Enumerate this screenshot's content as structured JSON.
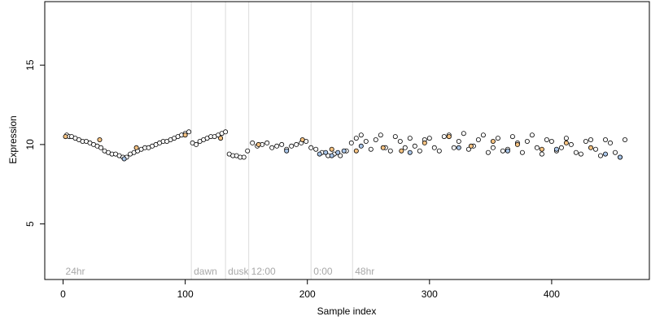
{
  "chart_data": {
    "type": "scatter",
    "xlabel": "Sample index",
    "ylabel": "Expression",
    "xlim": [
      -15,
      480
    ],
    "ylim": [
      1.5,
      19
    ],
    "x_ticks": [
      0,
      100,
      200,
      300,
      400
    ],
    "y_ticks": [
      5,
      10,
      15
    ],
    "grid": false,
    "colors": {
      "light": "#ffffff",
      "dark": "#f7c382",
      "dim": "#a9c5e8",
      "marker_edge": "#000000",
      "divider": "#dcdcdc",
      "divider_text": "#a8a8a8"
    },
    "segments": [
      {
        "label": "24hr",
        "x": 2
      },
      {
        "label": "dawn",
        "x": 105
      },
      {
        "label": "dusk",
        "x": 133
      },
      {
        "label": "12:00",
        "x": 152
      },
      {
        "label": "0:00",
        "x": 203
      },
      {
        "label": "48hr",
        "x": 237
      }
    ],
    "points": {
      "light": {
        "x": [
          3,
          5,
          7,
          10,
          13,
          16,
          19,
          22,
          25,
          28,
          31,
          34,
          37,
          40,
          43,
          46,
          49,
          52,
          55,
          58,
          61,
          64,
          67,
          70,
          73,
          76,
          79,
          82,
          85,
          88,
          91,
          94,
          97,
          100,
          103,
          106,
          109,
          112,
          115,
          118,
          121,
          124,
          127,
          130,
          133,
          136,
          139,
          142,
          145,
          148,
          151,
          155,
          159,
          163,
          167,
          171,
          175,
          179,
          183,
          187,
          191,
          195,
          199,
          203,
          207,
          212,
          217,
          222,
          227,
          232,
          236,
          240,
          244,
          248,
          252,
          256,
          260,
          264,
          268,
          272,
          276,
          280,
          284,
          288,
          292,
          296,
          300,
          304,
          308,
          312,
          316,
          320,
          324,
          328,
          332,
          336,
          340,
          344,
          348,
          352,
          356,
          360,
          364,
          368,
          372,
          376,
          380,
          384,
          388,
          392,
          396,
          400,
          404,
          408,
          412,
          416,
          420,
          424,
          428,
          432,
          436,
          440,
          444,
          448,
          452,
          456,
          460
        ],
        "y": [
          10.6,
          10.5,
          10.5,
          10.4,
          10.3,
          10.2,
          10.2,
          10.1,
          10.0,
          9.9,
          9.8,
          9.6,
          9.5,
          9.4,
          9.4,
          9.3,
          9.2,
          9.2,
          9.4,
          9.5,
          9.6,
          9.7,
          9.8,
          9.8,
          9.9,
          10.0,
          10.1,
          10.2,
          10.2,
          10.3,
          10.4,
          10.5,
          10.6,
          10.7,
          10.8,
          10.1,
          10.0,
          10.2,
          10.3,
          10.4,
          10.5,
          10.5,
          10.6,
          10.7,
          10.8,
          9.4,
          9.3,
          9.3,
          9.2,
          9.2,
          9.6,
          10.1,
          9.9,
          10.0,
          10.1,
          9.8,
          9.9,
          10.0,
          9.7,
          9.9,
          10.0,
          10.1,
          10.2,
          9.8,
          9.7,
          9.5,
          9.3,
          9.4,
          9.3,
          9.6,
          10.1,
          10.4,
          10.6,
          10.2,
          9.7,
          10.3,
          10.6,
          9.8,
          9.6,
          10.5,
          10.2,
          9.8,
          10.4,
          9.9,
          9.6,
          10.3,
          10.4,
          9.8,
          9.6,
          10.5,
          10.6,
          9.8,
          10.2,
          10.7,
          9.7,
          9.9,
          10.3,
          10.6,
          9.5,
          9.8,
          10.4,
          9.6,
          9.7,
          10.5,
          10.1,
          9.5,
          10.2,
          10.6,
          9.8,
          9.4,
          10.3,
          10.2,
          9.6,
          9.8,
          10.4,
          10.0,
          9.5,
          9.4,
          10.2,
          10.3,
          9.7,
          9.3,
          10.3,
          10.1,
          9.5,
          9.2,
          10.3
        ],
        "color_key": "light"
      },
      "dark": {
        "x": [
          2,
          30,
          60,
          100,
          129,
          160,
          196,
          220,
          240,
          262,
          277,
          296,
          316,
          334,
          352,
          372,
          392,
          412,
          432
        ],
        "y": [
          10.5,
          10.3,
          9.8,
          10.6,
          10.4,
          10.0,
          10.3,
          9.7,
          9.6,
          9.8,
          9.6,
          10.1,
          10.5,
          9.9,
          10.2,
          10.0,
          9.7,
          10.1,
          9.8
        ],
        "color_key": "dark"
      },
      "dim": {
        "x": [
          50,
          183,
          210,
          215,
          220,
          225,
          230,
          244,
          284,
          324,
          364,
          404,
          444,
          456
        ],
        "y": [
          9.1,
          9.6,
          9.4,
          9.5,
          9.3,
          9.5,
          9.6,
          9.9,
          9.5,
          9.8,
          9.6,
          9.7,
          9.4,
          9.2
        ],
        "color_key": "dim"
      }
    }
  }
}
